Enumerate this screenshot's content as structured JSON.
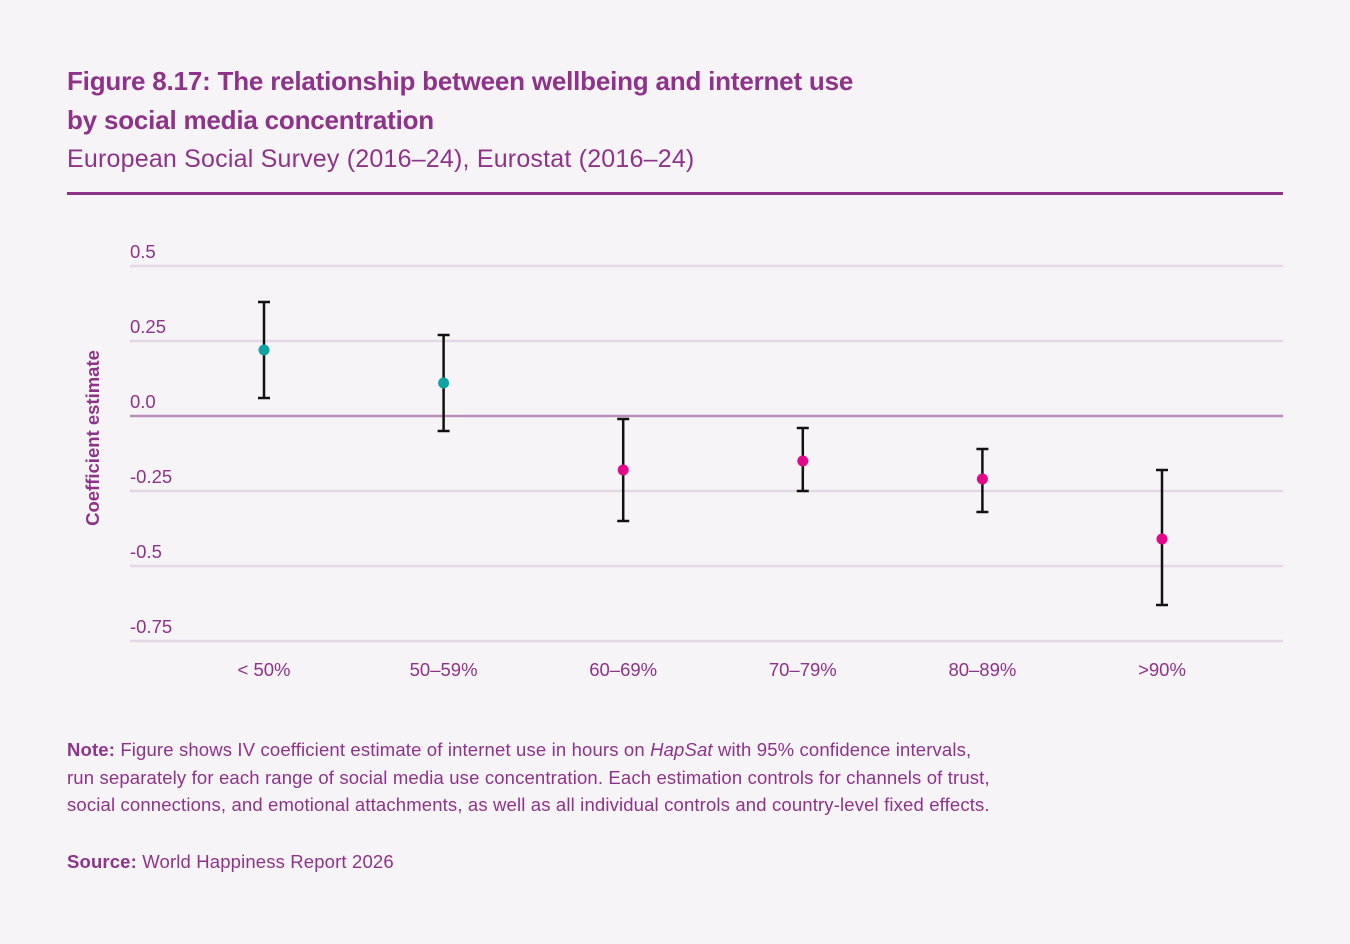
{
  "header": {
    "title_line1": "Figure 8.17: The relationship between wellbeing and internet use",
    "title_line2": "by social media concentration",
    "subtitle": "European Social Survey (2016–24), Eurostat (2016–24)"
  },
  "colors": {
    "brand": "#8e3389",
    "positive_point": "#0fa3a6",
    "negative_point": "#e4088a",
    "error_bar": "#111111",
    "gridline": "#e6d7e6",
    "zero_line": "#b98db8",
    "background": "#f7f4f8"
  },
  "chart_data": {
    "type": "scatter",
    "subtype": "point-estimate-with-error-bars",
    "title": "Figure 8.17: The relationship between wellbeing and internet use by social media concentration",
    "subtitle": "European Social Survey (2016–24), Eurostat (2016–24)",
    "xlabel": "",
    "ylabel": "Coefficient estimate",
    "categories": [
      "< 50%",
      "50–59%",
      "60–69%",
      "70–79%",
      "80–89%",
      ">90%"
    ],
    "series": [
      {
        "name": "IV coefficient estimate",
        "values": [
          0.22,
          0.11,
          -0.18,
          -0.15,
          -0.21,
          -0.41
        ],
        "ci_lower": [
          0.06,
          -0.05,
          -0.35,
          -0.25,
          -0.32,
          -0.63
        ],
        "ci_upper": [
          0.38,
          0.27,
          -0.01,
          -0.04,
          -0.11,
          -0.18
        ]
      }
    ],
    "ylim": [
      -0.75,
      0.5
    ],
    "yticks": [
      0.5,
      0.25,
      0.0,
      -0.25,
      -0.5,
      -0.75
    ],
    "ytick_labels": [
      "0.5",
      "0.25",
      "0.0",
      "-0.25",
      "-0.5",
      "-0.75"
    ],
    "grid": true,
    "legend": "none"
  },
  "notes": {
    "note_label": "Note:",
    "note_line1_a": " Figure shows IV coefficient estimate of internet use in hours on ",
    "note_italic": "HapSat",
    "note_line1_b": " with 95% confidence intervals,",
    "note_line2": "run separately for each range of social media use concentration. Each estimation controls for channels of trust,",
    "note_line3": "social connections, and emotional attachments, as well as all individual controls and country-level fixed effects.",
    "source_label": "Source:",
    "source_text": " World Happiness Report 2026"
  }
}
